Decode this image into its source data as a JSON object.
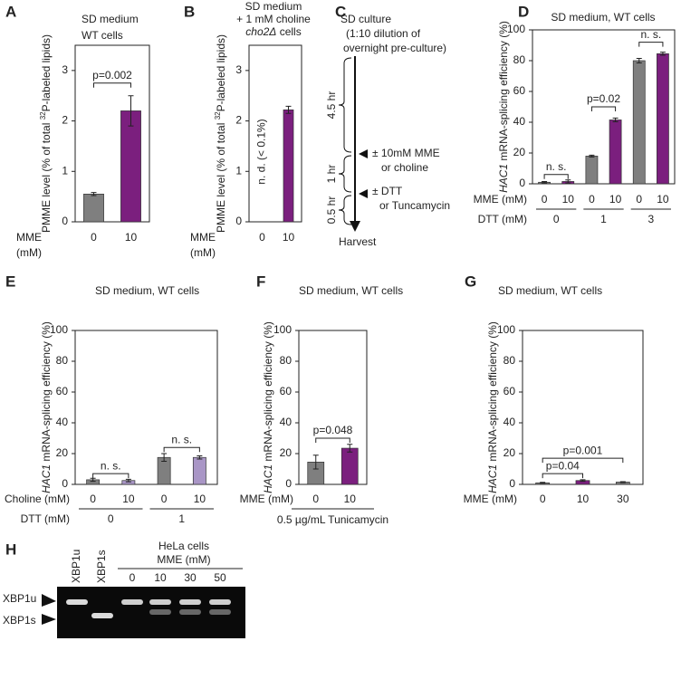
{
  "chart_data": [
    {
      "type": "bar",
      "panel": "A",
      "title": [
        "SD medium",
        "WT cells"
      ],
      "ylabel": [
        {
          "text": "PMME level (% of total "
        },
        {
          "text": "32",
          "sup": true
        },
        {
          "text": "P-labeled lipids)"
        }
      ],
      "x_label": [
        "MME",
        "(mM)"
      ],
      "categories": [
        "0",
        "10"
      ],
      "values": [
        0.55,
        2.2
      ],
      "errors": [
        0.03,
        0.3
      ],
      "colors": [
        "#7f7f7f",
        "#7b1f7e"
      ],
      "ylim": [
        0,
        3.5
      ],
      "yticks": [
        0,
        1,
        2,
        3
      ],
      "annotations": [
        {
          "text": "p=0.002",
          "from": 0,
          "to": 1,
          "y": 2.75
        }
      ]
    },
    {
      "type": "bar",
      "panel": "B",
      "title": [
        "SD medium",
        "+ 1 mM choline",
        [
          {
            "text": "cho2Δ",
            "italic": true
          },
          {
            "text": " cells"
          }
        ]
      ],
      "ylabel": [
        {
          "text": "PMME level (% of total "
        },
        {
          "text": "32",
          "sup": true
        },
        {
          "text": "P-labeled lipids)"
        }
      ],
      "x_label": [
        "MME",
        "(mM)"
      ],
      "categories": [
        "0",
        "10"
      ],
      "values": [
        null,
        2.22
      ],
      "errors": [
        null,
        0.07
      ],
      "colors": [
        "#7f7f7f",
        "#7b1f7e"
      ],
      "ylim": [
        0,
        3.5
      ],
      "yticks": [
        0,
        1,
        2,
        3
      ],
      "note": "n. d. (< 0.1%)",
      "annotations": []
    },
    {
      "type": "bar",
      "panel": "D",
      "title": [
        "SD medium, WT cells"
      ],
      "ylabel": [
        {
          "text": "HAC1",
          "italic": true
        },
        {
          "text": " mRNA-splicing efficiency (%)"
        }
      ],
      "x_label": "MME (mM)",
      "categories": [
        "0",
        "10",
        "0",
        "10",
        "0",
        "10"
      ],
      "group_label": "DTT (mM)",
      "groups": [
        "0",
        "1",
        "3"
      ],
      "values": [
        1,
        1.5,
        18,
        41.5,
        80,
        84.5
      ],
      "errors": [
        0.5,
        1,
        0.6,
        1.2,
        1.5,
        1
      ],
      "colors": [
        "#7f7f7f",
        "#7b1f7e",
        "#7f7f7f",
        "#7b1f7e",
        "#7f7f7f",
        "#7b1f7e"
      ],
      "ylim": [
        0,
        100
      ],
      "yticks": [
        0,
        20,
        40,
        60,
        80,
        100
      ],
      "annotations": [
        {
          "text": "n. s.",
          "from": 0,
          "to": 1,
          "y": 6
        },
        {
          "text": "p=0.02",
          "from": 2,
          "to": 3,
          "y": 50
        },
        {
          "text": "n. s.",
          "from": 4,
          "to": 5,
          "y": 92
        }
      ]
    },
    {
      "type": "bar",
      "panel": "E",
      "title": [
        "SD medium, WT cells"
      ],
      "ylabel": [
        {
          "text": "HAC1",
          "italic": true
        },
        {
          "text": " mRNA-splicing efficiency (%)"
        }
      ],
      "x_label": "Choline (mM)",
      "categories": [
        "0",
        "10",
        "0",
        "10"
      ],
      "group_label": "DTT (mM)",
      "groups": [
        "0",
        "1"
      ],
      "values": [
        3,
        2.5,
        17.5,
        17.5
      ],
      "errors": [
        1,
        0.8,
        2.5,
        1
      ],
      "colors": [
        "#7f7f7f",
        "#a996c6",
        "#7f7f7f",
        "#a996c6"
      ],
      "ylim": [
        0,
        100
      ],
      "yticks": [
        0,
        20,
        40,
        60,
        80,
        100
      ],
      "annotations": [
        {
          "text": "n. s.",
          "from": 0,
          "to": 1,
          "y": 7
        },
        {
          "text": "n. s.",
          "from": 2,
          "to": 3,
          "y": 24
        }
      ]
    },
    {
      "type": "bar",
      "panel": "F",
      "title": [
        "SD medium, WT cells"
      ],
      "ylabel": [
        {
          "text": "HAC1",
          "italic": true
        },
        {
          "text": " mRNA-splicing efficiency (%)"
        }
      ],
      "x_label": "MME (mM)",
      "categories": [
        "0",
        "10"
      ],
      "bottom_label": "0.5 µg/mL Tunicamycin",
      "values": [
        14.5,
        23.5
      ],
      "errors": [
        4.5,
        2.5
      ],
      "colors": [
        "#7f7f7f",
        "#7b1f7e"
      ],
      "ylim": [
        0,
        100
      ],
      "yticks": [
        0,
        20,
        40,
        60,
        80,
        100
      ],
      "annotations": [
        {
          "text": "p=0.048",
          "from": 0,
          "to": 1,
          "y": 30
        }
      ]
    },
    {
      "type": "bar",
      "panel": "G",
      "title": [
        "SD medium, WT cells"
      ],
      "ylabel": [
        {
          "text": "HAC1",
          "italic": true
        },
        {
          "text": " mRNA-splicing efficiency (%)"
        }
      ],
      "x_label": "MME (mM)",
      "categories": [
        "0",
        "10",
        "30"
      ],
      "values": [
        1,
        2.5,
        1.5
      ],
      "errors": [
        0.3,
        0.5,
        0.3
      ],
      "colors": [
        "#7f7f7f",
        "#7b1f7e",
        "#7f7f7f"
      ],
      "ylim": [
        0,
        100
      ],
      "yticks": [
        0,
        20,
        40,
        60,
        80,
        100
      ],
      "annotations": [
        {
          "text": "p=0.04",
          "from": 0,
          "to": 1,
          "y": 7
        },
        {
          "text": "p=0.001",
          "from": 0,
          "to": 2,
          "y": 17
        }
      ]
    }
  ],
  "diagram": {
    "panel": "C",
    "start": [
      "SD culture",
      "(1:10 dilution of",
      "overnight pre-culture)"
    ],
    "durations": [
      "4.5 hr",
      "1 hr",
      "0.5 hr"
    ],
    "step1": [
      "± 10mM MME",
      "or choline"
    ],
    "step2": [
      "± DTT",
      "or Tuncamycin"
    ],
    "end": "Harvest"
  },
  "gel": {
    "panel": "H",
    "lanes": [
      "XBP1u",
      "XBP1s",
      "0",
      "10",
      "30",
      "50"
    ],
    "header": [
      "HeLa cells",
      "MME (mM)"
    ],
    "bands": [
      "XBP1u",
      "XBP1s"
    ]
  }
}
